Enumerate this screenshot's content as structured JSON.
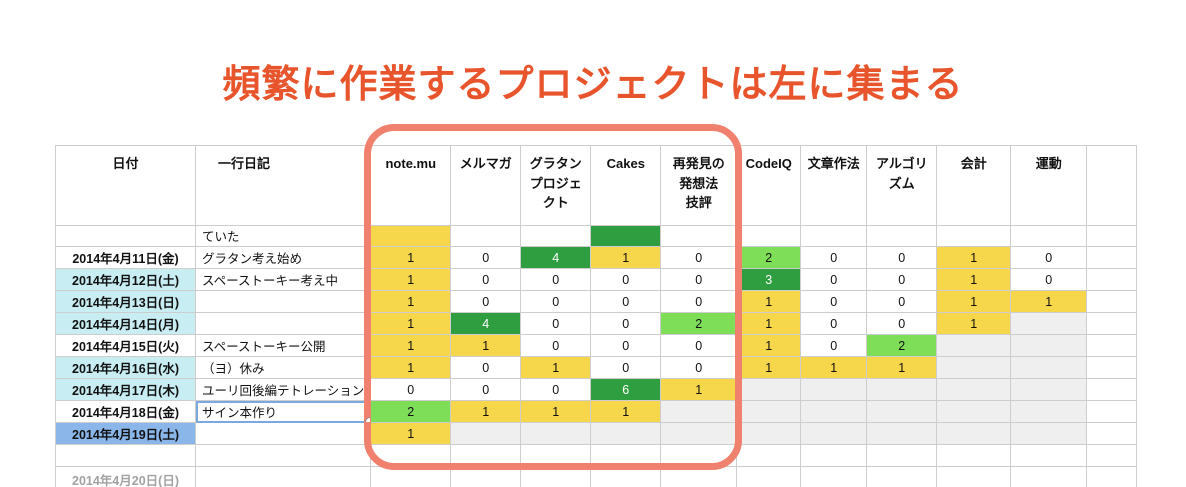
{
  "title": {
    "text": "頻繁に作業するプロジェクトは左に集まる"
  },
  "colors": {
    "title_orange": "#E8542B",
    "highlight_frame": "#F0816F",
    "value_yellow": "#F6D64B",
    "value_light_green": "#7EDE58",
    "value_dark_green": "#2F9E41",
    "date_cyan": "#C8EDF2",
    "date_selected_blue": "#8AB6EA",
    "empty_gray": "#EFEFEF",
    "gridline": "#CDCDCD"
  },
  "table": {
    "headers": [
      {
        "label": "日付"
      },
      {
        "label": "一行日記"
      },
      {
        "label": "note.mu"
      },
      {
        "label": "メルマガ"
      },
      {
        "label": "グラタン\nプロジェ\nクト"
      },
      {
        "label": "Cakes"
      },
      {
        "label": "再発見の\n発想法\n技評"
      },
      {
        "label": "CodeIQ"
      },
      {
        "label": "文章作法"
      },
      {
        "label": "アルゴリ\nズム"
      },
      {
        "label": "会計"
      },
      {
        "label": "運動"
      },
      {
        "label": ""
      }
    ],
    "rows": [
      {
        "row_type": "partial-top",
        "date": "",
        "date_bg": "white",
        "diary": "ていた",
        "cells": [
          [
            "",
            "y"
          ],
          [
            "",
            "w"
          ],
          [
            "",
            "w"
          ],
          [
            "",
            "G"
          ],
          [
            "",
            "w"
          ],
          [
            "",
            "w"
          ],
          [
            "",
            "w"
          ],
          [
            "",
            "w"
          ],
          [
            "",
            "w"
          ],
          [
            "",
            "w"
          ],
          [
            "",
            "w"
          ]
        ]
      },
      {
        "row_type": "normal",
        "date": "2014年4月11日(金)",
        "date_bg": "white",
        "diary": "グラタン考え始め",
        "cells": [
          [
            "1",
            "y"
          ],
          [
            "0",
            "w"
          ],
          [
            "4",
            "G"
          ],
          [
            "1",
            "y"
          ],
          [
            "0",
            "w"
          ],
          [
            "2",
            "g"
          ],
          [
            "0",
            "w"
          ],
          [
            "0",
            "w"
          ],
          [
            "1",
            "y"
          ],
          [
            "0",
            "w"
          ],
          [
            "",
            "w"
          ]
        ]
      },
      {
        "row_type": "normal",
        "date": "2014年4月12日(土)",
        "date_bg": "cyan",
        "diary": "スペーストーキー考え中",
        "cells": [
          [
            "1",
            "y"
          ],
          [
            "0",
            "w"
          ],
          [
            "0",
            "w"
          ],
          [
            "0",
            "w"
          ],
          [
            "0",
            "w"
          ],
          [
            "3",
            "G"
          ],
          [
            "0",
            "w"
          ],
          [
            "0",
            "w"
          ],
          [
            "1",
            "y"
          ],
          [
            "0",
            "w"
          ],
          [
            "",
            "w"
          ]
        ]
      },
      {
        "row_type": "normal",
        "date": "2014年4月13日(日)",
        "date_bg": "cyan",
        "diary": "",
        "cells": [
          [
            "1",
            "y"
          ],
          [
            "0",
            "w"
          ],
          [
            "0",
            "w"
          ],
          [
            "0",
            "w"
          ],
          [
            "0",
            "w"
          ],
          [
            "1",
            "y"
          ],
          [
            "0",
            "w"
          ],
          [
            "0",
            "w"
          ],
          [
            "1",
            "y"
          ],
          [
            "1",
            "y"
          ],
          [
            "",
            "w"
          ]
        ]
      },
      {
        "row_type": "normal",
        "date": "2014年4月14日(月)",
        "date_bg": "cyan",
        "diary": "",
        "cells": [
          [
            "1",
            "y"
          ],
          [
            "4",
            "G"
          ],
          [
            "0",
            "w"
          ],
          [
            "0",
            "w"
          ],
          [
            "2",
            "g"
          ],
          [
            "1",
            "y"
          ],
          [
            "0",
            "w"
          ],
          [
            "0",
            "w"
          ],
          [
            "1",
            "y"
          ],
          [
            "",
            "e"
          ],
          [
            "",
            "w"
          ]
        ]
      },
      {
        "row_type": "normal",
        "date": "2014年4月15日(火)",
        "date_bg": "white",
        "diary": "スペーストーキー公開",
        "cells": [
          [
            "1",
            "y"
          ],
          [
            "1",
            "y"
          ],
          [
            "0",
            "w"
          ],
          [
            "0",
            "w"
          ],
          [
            "0",
            "w"
          ],
          [
            "1",
            "y"
          ],
          [
            "0",
            "w"
          ],
          [
            "2",
            "g"
          ],
          [
            "",
            "e"
          ],
          [
            "",
            "e"
          ],
          [
            "",
            "w"
          ]
        ]
      },
      {
        "row_type": "normal",
        "date": "2014年4月16日(水)",
        "date_bg": "cyan",
        "diary": "（ヨ）休み",
        "cells": [
          [
            "1",
            "y"
          ],
          [
            "0",
            "w"
          ],
          [
            "1",
            "y"
          ],
          [
            "0",
            "w"
          ],
          [
            "0",
            "w"
          ],
          [
            "1",
            "y"
          ],
          [
            "1",
            "y"
          ],
          [
            "1",
            "y"
          ],
          [
            "",
            "e"
          ],
          [
            "",
            "e"
          ],
          [
            "",
            "w"
          ]
        ]
      },
      {
        "row_type": "normal",
        "date": "2014年4月17日(木)",
        "date_bg": "cyan",
        "diary": "ユーリ回後編テトレーション",
        "cells": [
          [
            "0",
            "w"
          ],
          [
            "0",
            "w"
          ],
          [
            "0",
            "w"
          ],
          [
            "6",
            "G"
          ],
          [
            "1",
            "y"
          ],
          [
            "",
            "e"
          ],
          [
            "",
            "e"
          ],
          [
            "",
            "e"
          ],
          [
            "",
            "e"
          ],
          [
            "",
            "e"
          ],
          [
            "",
            "w"
          ]
        ]
      },
      {
        "row_type": "normal",
        "date": "2014年4月18日(金)",
        "date_bg": "white",
        "diary": "サイン本作り",
        "selected": true,
        "cells": [
          [
            "2",
            "g"
          ],
          [
            "1",
            "y"
          ],
          [
            "1",
            "y"
          ],
          [
            "1",
            "y"
          ],
          [
            "",
            "e"
          ],
          [
            "",
            "e"
          ],
          [
            "",
            "e"
          ],
          [
            "",
            "e"
          ],
          [
            "",
            "e"
          ],
          [
            "",
            "e"
          ],
          [
            "",
            "w"
          ]
        ]
      },
      {
        "row_type": "normal",
        "date": "2014年4月19日(土)",
        "date_bg": "blue",
        "diary": "",
        "cells": [
          [
            "1",
            "y"
          ],
          [
            "",
            "e"
          ],
          [
            "",
            "e"
          ],
          [
            "",
            "e"
          ],
          [
            "",
            "e"
          ],
          [
            "",
            "e"
          ],
          [
            "",
            "e"
          ],
          [
            "",
            "e"
          ],
          [
            "",
            "e"
          ],
          [
            "",
            "e"
          ],
          [
            "",
            "w"
          ]
        ]
      },
      {
        "row_type": "empty-row",
        "date": "",
        "date_bg": "white",
        "diary": "",
        "cells": [
          [
            "",
            "w"
          ],
          [
            "",
            "w"
          ],
          [
            "",
            "w"
          ],
          [
            "",
            "w"
          ],
          [
            "",
            "w"
          ],
          [
            "",
            "w"
          ],
          [
            "",
            "w"
          ],
          [
            "",
            "w"
          ],
          [
            "",
            "w"
          ],
          [
            "",
            "w"
          ],
          [
            "",
            "w"
          ]
        ]
      },
      {
        "row_type": "partial-bottom",
        "date": "2014年4月20日(日)",
        "date_bg": "white",
        "date_muted": true,
        "diary": "",
        "cells": [
          [
            "",
            "w"
          ],
          [
            "",
            "w"
          ],
          [
            "",
            "w"
          ],
          [
            "",
            "w"
          ],
          [
            "",
            "w"
          ],
          [
            "",
            "w"
          ],
          [
            "",
            "w"
          ],
          [
            "",
            "w"
          ],
          [
            "",
            "w"
          ],
          [
            "",
            "w"
          ],
          [
            "",
            "w"
          ]
        ]
      }
    ]
  }
}
